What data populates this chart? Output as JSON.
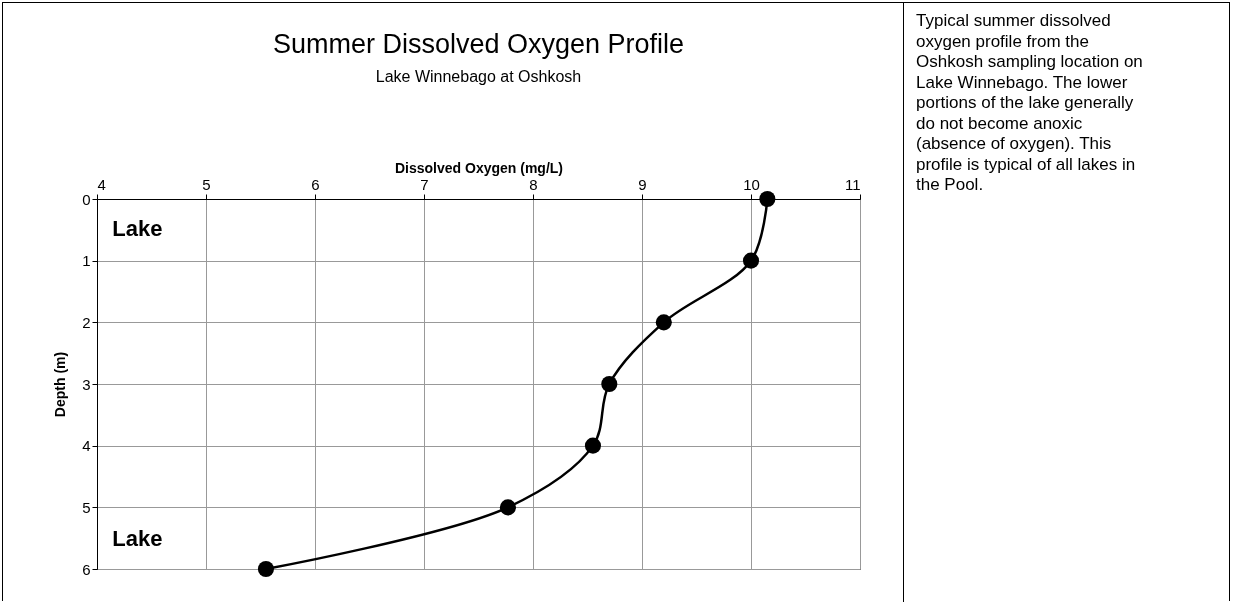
{
  "chart_data": {
    "type": "line",
    "title": "Summer Dissolved Oxygen Profile",
    "subtitle": "Lake Winnebago at Oshkosh",
    "xlabel": "Dissolved Oxygen (mg/L)",
    "ylabel": "Depth (m)",
    "annotations": [
      "Lake",
      "Lake",
      "Typical summer dissolved oxygen profile from the Oshkosh sampling location on Lake Winnebago. The lower portions of the lake generally do not become anoxic (absence of oxygen). This profile is typical of all lakes in the Pool."
    ],
    "series": [
      {
        "color": "#000000",
        "x": [
          10.15,
          10.0,
          9.2,
          8.7,
          8.55,
          7.77,
          5.55
        ],
        "values": [
          0,
          1,
          2,
          3,
          4,
          5,
          6
        ]
      }
    ],
    "xlim": [
      4,
      11
    ],
    "xticks": [
      4,
      5,
      6,
      7,
      8,
      9,
      10,
      11
    ],
    "ylim": [
      6,
      0
    ],
    "yticks": [
      0,
      1,
      2,
      3,
      4,
      5,
      6
    ],
    "grid": true,
    "legend": false,
    "marker": "circle",
    "line_style": "solid"
  }
}
